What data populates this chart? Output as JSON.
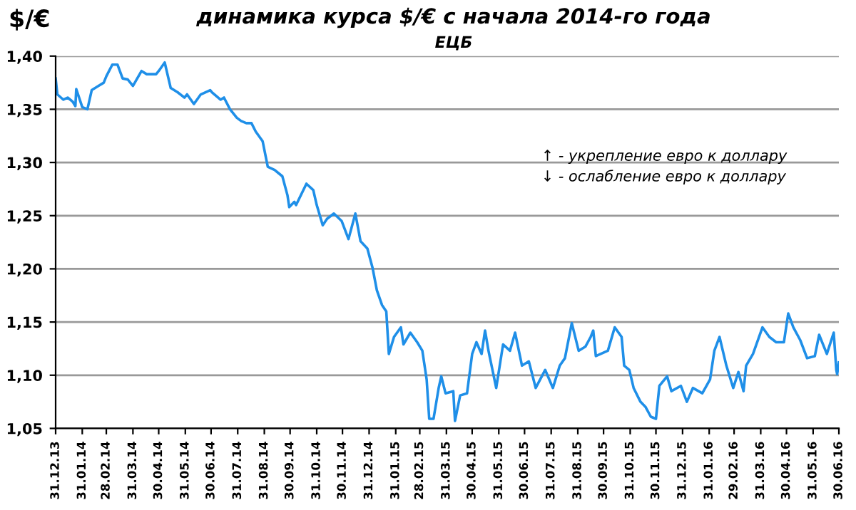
{
  "chart_data": {
    "type": "line",
    "title": "динамика курса $/€ с начала 2014-го года",
    "subtitle": "ЕЦБ",
    "ylabel": "$/€",
    "annotations": [
      "↑ - укрепление евро к доллару",
      "↓ - ослабление евро к доллару"
    ],
    "x": [
      "2013-12-31",
      "2014-01-02",
      "2014-01-09",
      "2014-01-14",
      "2014-01-20",
      "2014-01-23",
      "2014-01-24",
      "2014-01-31",
      "2014-02-06",
      "2014-02-11",
      "2014-02-19",
      "2014-02-25",
      "2014-02-28",
      "2014-03-07",
      "2014-03-13",
      "2014-03-19",
      "2014-03-25",
      "2014-03-31",
      "2014-04-10",
      "2014-04-16",
      "2014-04-27",
      "2014-04-30",
      "2014-05-07",
      "2014-05-14",
      "2014-05-22",
      "2014-05-30",
      "2014-06-02",
      "2014-06-10",
      "2014-06-18",
      "2014-06-29",
      "2014-07-01",
      "2014-07-11",
      "2014-07-15",
      "2014-07-22",
      "2014-07-30",
      "2014-08-04",
      "2014-08-10",
      "2014-08-16",
      "2014-08-21",
      "2014-08-29",
      "2014-09-04",
      "2014-09-12",
      "2014-09-21",
      "2014-09-27",
      "2014-09-29",
      "2014-10-05",
      "2014-10-07",
      "2014-10-19",
      "2014-10-27",
      "2014-10-31",
      "2014-11-07",
      "2014-11-12",
      "2014-11-20",
      "2014-11-29",
      "2014-12-07",
      "2014-12-15",
      "2014-12-21",
      "2014-12-29",
      "2015-01-04",
      "2015-01-09",
      "2015-01-15",
      "2015-01-20",
      "2015-01-23",
      "2015-01-29",
      "2015-02-06",
      "2015-02-09",
      "2015-02-17",
      "2015-02-25",
      "2015-03-03",
      "2015-03-08",
      "2015-03-11",
      "2015-03-16",
      "2015-03-22",
      "2015-03-25",
      "2015-03-30",
      "2015-04-08",
      "2015-04-10",
      "2015-04-16",
      "2015-04-24",
      "2015-04-30",
      "2015-05-05",
      "2015-05-11",
      "2015-05-15",
      "2015-05-19",
      "2015-05-28",
      "2015-06-05",
      "2015-06-13",
      "2015-06-19",
      "2015-06-27",
      "2015-07-05",
      "2015-07-13",
      "2015-07-24",
      "2015-08-02",
      "2015-08-10",
      "2015-08-16",
      "2015-08-24",
      "2015-09-01",
      "2015-09-09",
      "2015-09-15",
      "2015-09-18",
      "2015-09-21",
      "2015-10-05",
      "2015-10-13",
      "2015-10-21",
      "2015-10-24",
      "2015-10-30",
      "2015-11-04",
      "2015-11-12",
      "2015-11-18",
      "2015-11-24",
      "2015-11-30",
      "2015-12-04",
      "2015-12-13",
      "2015-12-18",
      "2015-12-29",
      "2016-01-05",
      "2016-01-12",
      "2016-01-23",
      "2016-02-01",
      "2016-02-06",
      "2016-02-12",
      "2016-02-20",
      "2016-02-28",
      "2016-03-05",
      "2016-03-11",
      "2016-03-14",
      "2016-03-22",
      "2016-04-02",
      "2016-04-10",
      "2016-04-18",
      "2016-04-27",
      "2016-05-02",
      "2016-05-08",
      "2016-05-16",
      "2016-05-24",
      "2016-06-02",
      "2016-06-07",
      "2016-06-16",
      "2016-06-24",
      "2016-06-27",
      "2016-06-28",
      "2016-06-30"
    ],
    "series": [
      {
        "color": "#1f8fe8",
        "values": [
          1.379,
          1.364,
          1.359,
          1.361,
          1.357,
          1.353,
          1.369,
          1.352,
          1.35,
          1.368,
          1.372,
          1.375,
          1.381,
          1.392,
          1.392,
          1.379,
          1.378,
          1.372,
          1.386,
          1.383,
          1.383,
          1.386,
          1.394,
          1.37,
          1.366,
          1.361,
          1.364,
          1.355,
          1.364,
          1.368,
          1.366,
          1.359,
          1.361,
          1.35,
          1.342,
          1.339,
          1.337,
          1.337,
          1.329,
          1.32,
          1.296,
          1.293,
          1.287,
          1.269,
          1.258,
          1.263,
          1.26,
          1.28,
          1.274,
          1.26,
          1.241,
          1.247,
          1.252,
          1.245,
          1.228,
          1.252,
          1.226,
          1.219,
          1.201,
          1.18,
          1.166,
          1.16,
          1.12,
          1.136,
          1.145,
          1.129,
          1.14,
          1.131,
          1.123,
          1.096,
          1.059,
          1.059,
          1.088,
          1.099,
          1.083,
          1.085,
          1.057,
          1.081,
          1.083,
          1.12,
          1.131,
          1.12,
          1.142,
          1.123,
          1.088,
          1.129,
          1.123,
          1.14,
          1.109,
          1.113,
          1.088,
          1.105,
          1.088,
          1.109,
          1.116,
          1.149,
          1.123,
          1.127,
          1.136,
          1.142,
          1.118,
          1.123,
          1.145,
          1.136,
          1.109,
          1.105,
          1.088,
          1.075,
          1.07,
          1.061,
          1.059,
          1.09,
          1.099,
          1.085,
          1.09,
          1.075,
          1.088,
          1.083,
          1.096,
          1.123,
          1.136,
          1.109,
          1.088,
          1.103,
          1.085,
          1.109,
          1.12,
          1.145,
          1.136,
          1.131,
          1.131,
          1.158,
          1.145,
          1.133,
          1.116,
          1.118,
          1.138,
          1.12,
          1.14,
          1.105,
          1.101,
          1.112
        ]
      }
    ],
    "xlim": [
      "2013-12-31",
      "2016-06-30"
    ],
    "xticks": [
      {
        "value": "2013-12-31",
        "label": "31.12.13"
      },
      {
        "value": "2014-01-31",
        "label": "31.01.14"
      },
      {
        "value": "2014-02-28",
        "label": "28.02.14"
      },
      {
        "value": "2014-03-31",
        "label": "31.03.14"
      },
      {
        "value": "2014-04-30",
        "label": "30.04.14"
      },
      {
        "value": "2014-05-31",
        "label": "31.05.14"
      },
      {
        "value": "2014-06-30",
        "label": "30.06.14"
      },
      {
        "value": "2014-07-31",
        "label": "31.07.14"
      },
      {
        "value": "2014-08-31",
        "label": "31.08.14"
      },
      {
        "value": "2014-09-30",
        "label": "30.09.14"
      },
      {
        "value": "2014-10-31",
        "label": "31.10.14"
      },
      {
        "value": "2014-11-30",
        "label": "30.11.14"
      },
      {
        "value": "2014-12-31",
        "label": "31.12.14"
      },
      {
        "value": "2015-01-31",
        "label": "31.01.15"
      },
      {
        "value": "2015-02-28",
        "label": "28.02.15"
      },
      {
        "value": "2015-03-31",
        "label": "31.03.15"
      },
      {
        "value": "2015-04-30",
        "label": "30.04.15"
      },
      {
        "value": "2015-05-31",
        "label": "31.05.15"
      },
      {
        "value": "2015-06-30",
        "label": "30.06.15"
      },
      {
        "value": "2015-07-31",
        "label": "31.07.15"
      },
      {
        "value": "2015-08-31",
        "label": "31.08.15"
      },
      {
        "value": "2015-09-30",
        "label": "30.09.15"
      },
      {
        "value": "2015-10-31",
        "label": "31.10.15"
      },
      {
        "value": "2015-11-30",
        "label": "30.11.15"
      },
      {
        "value": "2015-12-31",
        "label": "31.12.15"
      },
      {
        "value": "2016-01-31",
        "label": "31.01.16"
      },
      {
        "value": "2016-02-29",
        "label": "29.02.16"
      },
      {
        "value": "2016-03-31",
        "label": "31.03.16"
      },
      {
        "value": "2016-04-30",
        "label": "30.04.16"
      },
      {
        "value": "2016-05-31",
        "label": "31.05.16"
      },
      {
        "value": "2016-06-30",
        "label": "30.06.16"
      }
    ],
    "ylim": [
      1.05,
      1.4
    ],
    "yticks": [
      {
        "value": 1.05,
        "label": "1,05"
      },
      {
        "value": 1.1,
        "label": "1,10"
      },
      {
        "value": 1.15,
        "label": "1,15"
      },
      {
        "value": 1.2,
        "label": "1,20"
      },
      {
        "value": 1.25,
        "label": "1,25"
      },
      {
        "value": 1.3,
        "label": "1,30"
      },
      {
        "value": 1.35,
        "label": "1,35"
      },
      {
        "value": 1.4,
        "label": "1,40"
      }
    ],
    "grid": "y",
    "legend": false,
    "marker": "none",
    "line_style": "solid"
  }
}
